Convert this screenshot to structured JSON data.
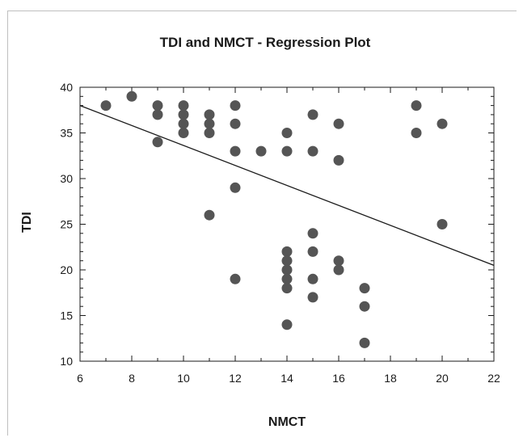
{
  "chart_data": {
    "type": "scatter",
    "title": "TDI and NMCT - Regression Plot",
    "xlabel": "NMCT",
    "ylabel": "TDI",
    "xlim": [
      6,
      22
    ],
    "ylim": [
      10,
      40
    ],
    "xticks": [
      6,
      8,
      10,
      12,
      14,
      16,
      18,
      20,
      22
    ],
    "yticks": [
      10,
      15,
      20,
      25,
      30,
      35,
      40
    ],
    "grid": false,
    "colors": {
      "points": "#555555",
      "line": "#1a1a1a",
      "axes": "#1a1a1a"
    },
    "regression_line": {
      "x": [
        6,
        22
      ],
      "y": [
        38,
        20.5
      ]
    },
    "points": [
      [
        7,
        38
      ],
      [
        8,
        39
      ],
      [
        9,
        38
      ],
      [
        9,
        37
      ],
      [
        9,
        34
      ],
      [
        10,
        38
      ],
      [
        10,
        37
      ],
      [
        10,
        36
      ],
      [
        10,
        35
      ],
      [
        11,
        37
      ],
      [
        11,
        36
      ],
      [
        11,
        35
      ],
      [
        11,
        26
      ],
      [
        12,
        38
      ],
      [
        12,
        36
      ],
      [
        12,
        33
      ],
      [
        12,
        29
      ],
      [
        12,
        19
      ],
      [
        13,
        33
      ],
      [
        14,
        35
      ],
      [
        14,
        33
      ],
      [
        14,
        22
      ],
      [
        14,
        21
      ],
      [
        14,
        20
      ],
      [
        14,
        19
      ],
      [
        14,
        18
      ],
      [
        14,
        14
      ],
      [
        15,
        37
      ],
      [
        15,
        33
      ],
      [
        15,
        24
      ],
      [
        15,
        22
      ],
      [
        15,
        19
      ],
      [
        15,
        17
      ],
      [
        16,
        36
      ],
      [
        16,
        32
      ],
      [
        16,
        21
      ],
      [
        16,
        20
      ],
      [
        17,
        18
      ],
      [
        17,
        16
      ],
      [
        17,
        12
      ],
      [
        19,
        38
      ],
      [
        19,
        35
      ],
      [
        20,
        36
      ],
      [
        20,
        25
      ]
    ]
  }
}
